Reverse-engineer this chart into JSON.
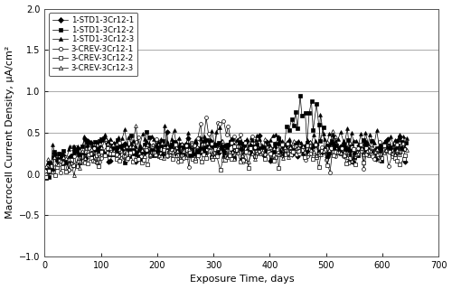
{
  "title": "",
  "xlabel": "Exposure Time, days",
  "ylabel": "Macrocell Current Density, μA/cm²",
  "xlim": [
    0,
    700
  ],
  "ylim": [
    -1.0,
    2.0
  ],
  "xticks": [
    0,
    100,
    200,
    300,
    400,
    500,
    600,
    700
  ],
  "yticks": [
    -1.0,
    -0.5,
    0.0,
    0.5,
    1.0,
    1.5,
    2.0
  ],
  "series": [
    {
      "label": "1-STD1-3Cr12-1",
      "marker": "D",
      "filled": true,
      "color": "#000000",
      "lw": 0.5
    },
    {
      "label": "1-STD1-3Cr12-2",
      "marker": "s",
      "filled": true,
      "color": "#000000",
      "lw": 0.5
    },
    {
      "label": "1-STD1-3Cr12-3",
      "marker": "^",
      "filled": true,
      "color": "#000000",
      "lw": 0.5
    },
    {
      "label": "3-CREV-3Cr12-1",
      "marker": "o",
      "filled": false,
      "color": "#000000",
      "lw": 0.5
    },
    {
      "label": "3-CREV-3Cr12-2",
      "marker": "s",
      "filled": false,
      "color": "#000000",
      "lw": 0.5
    },
    {
      "label": "3-CREV-3Cr12-3",
      "marker": "^",
      "filled": false,
      "color": "#000000",
      "lw": 0.5
    }
  ],
  "background_color": "#ffffff",
  "grid_color": "#888888",
  "legend_fontsize": 6.2,
  "axis_fontsize": 8,
  "tick_fontsize": 7
}
